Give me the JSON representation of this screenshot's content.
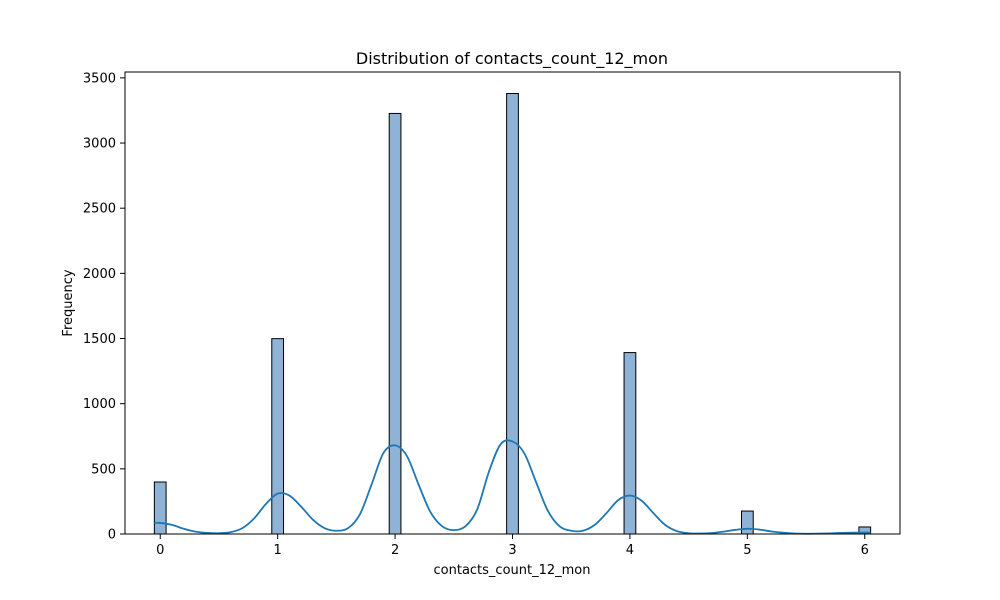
{
  "chart_data": {
    "type": "bar",
    "title": "Distribution of contacts_count_12_mon",
    "xlabel": "contacts_count_12_mon",
    "ylabel": "Frequency",
    "xlim": [
      -0.3,
      6.3
    ],
    "ylim": [
      0,
      3545
    ],
    "x_ticks": [
      0,
      1,
      2,
      3,
      4,
      5,
      6
    ],
    "y_ticks": [
      0,
      500,
      1000,
      1500,
      2000,
      2500,
      3000,
      3500
    ],
    "bin_width": 0.1,
    "bins": [
      {
        "x": 0,
        "value": 399
      },
      {
        "x": 1,
        "value": 1499
      },
      {
        "x": 2,
        "value": 3227
      },
      {
        "x": 3,
        "value": 3380
      },
      {
        "x": 4,
        "value": 1392
      },
      {
        "x": 5,
        "value": 176
      },
      {
        "x": 6,
        "value": 54
      }
    ],
    "kde_curve": {
      "x": [
        -0.05,
        0.0,
        0.1,
        0.2,
        0.3,
        0.4,
        0.5,
        0.6,
        0.7,
        0.8,
        0.9,
        1.0,
        1.1,
        1.2,
        1.3,
        1.4,
        1.5,
        1.6,
        1.7,
        1.8,
        1.9,
        2.0,
        2.1,
        2.2,
        2.3,
        2.4,
        2.5,
        2.6,
        2.7,
        2.8,
        2.9,
        3.0,
        3.1,
        3.2,
        3.3,
        3.4,
        3.5,
        3.6,
        3.7,
        3.8,
        3.9,
        4.0,
        4.1,
        4.2,
        4.3,
        4.4,
        4.5,
        4.6,
        4.7,
        4.8,
        4.9,
        5.0,
        5.1,
        5.2,
        5.3,
        5.4,
        5.5,
        5.6,
        5.7,
        5.8,
        5.9,
        6.0,
        6.05
      ],
      "y": [
        85,
        85,
        70,
        40,
        18,
        8,
        6,
        14,
        45,
        120,
        230,
        310,
        295,
        210,
        110,
        45,
        25,
        45,
        150,
        380,
        620,
        680,
        600,
        380,
        170,
        60,
        30,
        60,
        190,
        480,
        690,
        710,
        620,
        400,
        180,
        60,
        25,
        25,
        70,
        160,
        260,
        295,
        255,
        160,
        70,
        22,
        6,
        4,
        8,
        18,
        32,
        40,
        34,
        20,
        10,
        4,
        2,
        3,
        5,
        8,
        10,
        11,
        11
      ]
    },
    "grid": false,
    "legend": "none",
    "colors": {
      "bar_fill": "#8fb3d6",
      "bar_edge": "#000000",
      "kde_line": "#1f77b4",
      "axes": "#000000",
      "background": "#ffffff"
    }
  }
}
